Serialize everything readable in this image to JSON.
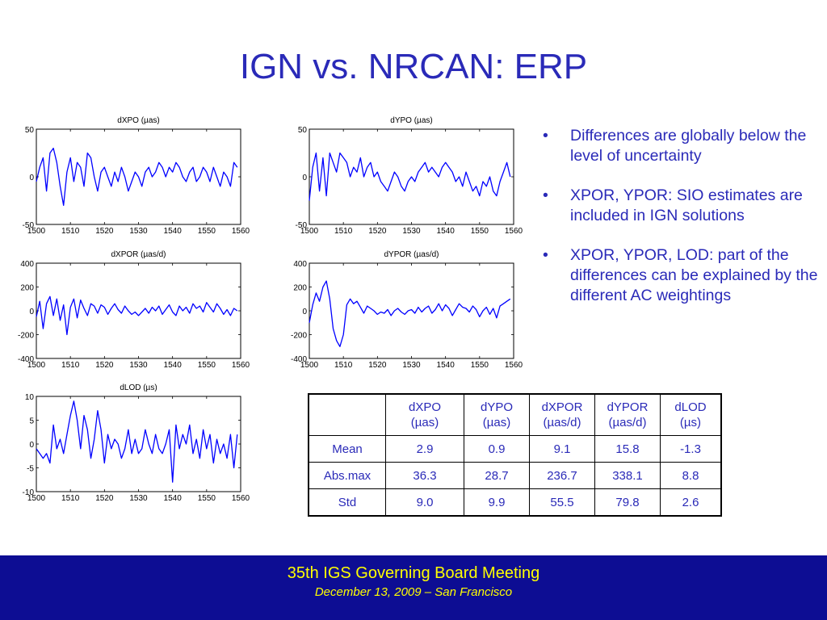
{
  "slide": {
    "title": "IGN vs. NRCAN: ERP"
  },
  "bullets": [
    "Differences are globally below the level of uncertainty",
    "XPOR, YPOR: SIO estimates are included in IGN solutions",
    "XPOR, YPOR, LOD: part of the differences can be explained by the different AC weightings"
  ],
  "bullet_symbol": "•",
  "colors": {
    "title": "#2a2ab8",
    "series": "#0000ff",
    "footer_bg": "#0d0d93",
    "footer_text": "#ffff00"
  },
  "chart_data": [
    {
      "type": "line",
      "title": "dXPO (µas)",
      "xlim": [
        1500,
        1560
      ],
      "ylim": [
        -50,
        50
      ],
      "xticks": [
        1500,
        1510,
        1520,
        1530,
        1540,
        1550,
        1560
      ],
      "yticks": [
        50,
        0,
        -50
      ],
      "series": [
        {
          "x": [
            1500,
            1501,
            1502,
            1503,
            1504,
            1505,
            1506,
            1507,
            1508,
            1509,
            1510,
            1511,
            1512,
            1513,
            1514,
            1515,
            1516,
            1517,
            1518,
            1519,
            1520,
            1521,
            1522,
            1523,
            1524,
            1525,
            1526,
            1527,
            1528,
            1529,
            1530,
            1531,
            1532,
            1533,
            1534,
            1535,
            1536,
            1537,
            1538,
            1539,
            1540,
            1541,
            1542,
            1543,
            1544,
            1545,
            1546,
            1547,
            1548,
            1549,
            1550,
            1551,
            1552,
            1553,
            1554,
            1555,
            1556,
            1557,
            1558,
            1559
          ],
          "y": [
            -5,
            10,
            20,
            -15,
            25,
            30,
            15,
            -10,
            -30,
            5,
            20,
            -5,
            15,
            10,
            -10,
            25,
            20,
            0,
            -15,
            5,
            10,
            0,
            -10,
            5,
            -5,
            10,
            0,
            -15,
            -5,
            5,
            0,
            -10,
            5,
            10,
            0,
            5,
            15,
            10,
            0,
            10,
            5,
            15,
            10,
            0,
            -5,
            5,
            10,
            -5,
            0,
            10,
            5,
            -5,
            10,
            0,
            -10,
            5,
            0,
            -10,
            15,
            10
          ]
        }
      ]
    },
    {
      "type": "line",
      "title": "dYPO (µas)",
      "xlim": [
        1500,
        1560
      ],
      "ylim": [
        -50,
        50
      ],
      "xticks": [
        1500,
        1510,
        1520,
        1530,
        1540,
        1550,
        1560
      ],
      "yticks": [
        50,
        0,
        -50
      ],
      "series": [
        {
          "x": [
            1500,
            1501,
            1502,
            1503,
            1504,
            1505,
            1506,
            1507,
            1508,
            1509,
            1510,
            1511,
            1512,
            1513,
            1514,
            1515,
            1516,
            1517,
            1518,
            1519,
            1520,
            1521,
            1522,
            1523,
            1524,
            1525,
            1526,
            1527,
            1528,
            1529,
            1530,
            1531,
            1532,
            1533,
            1534,
            1535,
            1536,
            1537,
            1538,
            1539,
            1540,
            1541,
            1542,
            1543,
            1544,
            1545,
            1546,
            1547,
            1548,
            1549,
            1550,
            1551,
            1552,
            1553,
            1554,
            1555,
            1556,
            1557,
            1558,
            1559
          ],
          "y": [
            -25,
            10,
            25,
            -15,
            20,
            -20,
            25,
            15,
            5,
            25,
            20,
            15,
            0,
            10,
            5,
            20,
            0,
            10,
            15,
            0,
            5,
            -5,
            -10,
            -15,
            -5,
            5,
            0,
            -10,
            -15,
            -5,
            0,
            -5,
            5,
            10,
            15,
            5,
            10,
            5,
            0,
            10,
            15,
            10,
            5,
            -5,
            0,
            -10,
            5,
            -5,
            -15,
            -10,
            -20,
            -5,
            -10,
            0,
            -15,
            -20,
            -5,
            5,
            15,
            0
          ]
        }
      ]
    },
    {
      "type": "line",
      "title": "dXPOR (µas/d)",
      "xlim": [
        1500,
        1560
      ],
      "ylim": [
        -400,
        400
      ],
      "xticks": [
        1500,
        1510,
        1520,
        1530,
        1540,
        1550,
        1560
      ],
      "yticks": [
        400,
        200,
        0,
        -200,
        -400
      ],
      "series": [
        {
          "x": [
            1500,
            1501,
            1502,
            1503,
            1504,
            1505,
            1506,
            1507,
            1508,
            1509,
            1510,
            1511,
            1512,
            1513,
            1514,
            1515,
            1516,
            1517,
            1518,
            1519,
            1520,
            1521,
            1522,
            1523,
            1524,
            1525,
            1526,
            1527,
            1528,
            1529,
            1530,
            1531,
            1532,
            1533,
            1534,
            1535,
            1536,
            1537,
            1538,
            1539,
            1540,
            1541,
            1542,
            1543,
            1544,
            1545,
            1546,
            1547,
            1548,
            1549,
            1550,
            1551,
            1552,
            1553,
            1554,
            1555,
            1556,
            1557,
            1558,
            1559
          ],
          "y": [
            -50,
            80,
            -150,
            60,
            120,
            -40,
            100,
            -80,
            50,
            -200,
            30,
            100,
            -60,
            90,
            20,
            -40,
            60,
            40,
            -20,
            50,
            30,
            -30,
            20,
            60,
            10,
            -20,
            40,
            0,
            -30,
            -10,
            -40,
            -10,
            20,
            -20,
            30,
            0,
            40,
            -30,
            10,
            50,
            -10,
            -40,
            40,
            0,
            30,
            -20,
            60,
            20,
            40,
            -10,
            70,
            30,
            -10,
            60,
            20,
            -30,
            10,
            -40,
            20,
            0
          ]
        }
      ]
    },
    {
      "type": "line",
      "title": "dYPOR (µas/d)",
      "xlim": [
        1500,
        1560
      ],
      "ylim": [
        -400,
        400
      ],
      "xticks": [
        1500,
        1510,
        1520,
        1530,
        1540,
        1550,
        1560
      ],
      "yticks": [
        400,
        200,
        0,
        -200,
        -400
      ],
      "series": [
        {
          "x": [
            1500,
            1501,
            1502,
            1503,
            1504,
            1505,
            1506,
            1507,
            1508,
            1509,
            1510,
            1511,
            1512,
            1513,
            1514,
            1515,
            1516,
            1517,
            1518,
            1519,
            1520,
            1521,
            1522,
            1523,
            1524,
            1525,
            1526,
            1527,
            1528,
            1529,
            1530,
            1531,
            1532,
            1533,
            1534,
            1535,
            1536,
            1537,
            1538,
            1539,
            1540,
            1541,
            1542,
            1543,
            1544,
            1545,
            1546,
            1547,
            1548,
            1549,
            1550,
            1551,
            1552,
            1553,
            1554,
            1555,
            1556,
            1557,
            1558,
            1559
          ],
          "y": [
            -100,
            50,
            150,
            80,
            200,
            250,
            100,
            -150,
            -250,
            -300,
            -200,
            50,
            100,
            60,
            80,
            30,
            -20,
            40,
            20,
            0,
            -30,
            -10,
            -20,
            10,
            -40,
            0,
            20,
            -10,
            -30,
            0,
            10,
            -20,
            30,
            -10,
            20,
            40,
            -20,
            10,
            60,
            0,
            50,
            20,
            -40,
            10,
            60,
            30,
            20,
            -10,
            40,
            10,
            -50,
            0,
            30,
            -30,
            20,
            -60,
            40,
            60,
            80,
            100
          ]
        }
      ]
    },
    {
      "type": "line",
      "title": "dLOD (µs)",
      "xlim": [
        1500,
        1560
      ],
      "ylim": [
        -10,
        10
      ],
      "xticks": [
        1500,
        1510,
        1520,
        1530,
        1540,
        1550,
        1560
      ],
      "yticks": [
        10,
        5,
        0,
        -5,
        -10
      ],
      "series": [
        {
          "x": [
            1500,
            1501,
            1502,
            1503,
            1504,
            1505,
            1506,
            1507,
            1508,
            1509,
            1510,
            1511,
            1512,
            1513,
            1514,
            1515,
            1516,
            1517,
            1518,
            1519,
            1520,
            1521,
            1522,
            1523,
            1524,
            1525,
            1526,
            1527,
            1528,
            1529,
            1530,
            1531,
            1532,
            1533,
            1534,
            1535,
            1536,
            1537,
            1538,
            1539,
            1540,
            1541,
            1542,
            1543,
            1544,
            1545,
            1546,
            1547,
            1548,
            1549,
            1550,
            1551,
            1552,
            1553,
            1554,
            1555,
            1556,
            1557,
            1558,
            1559
          ],
          "y": [
            -1,
            -2,
            -3,
            -2,
            -4,
            4,
            -1,
            1,
            -2,
            2,
            6,
            9,
            5,
            -1,
            6,
            3,
            -3,
            1,
            7,
            3,
            -4,
            2,
            -1,
            1,
            0,
            -3,
            -1,
            3,
            -2,
            1,
            -2,
            -1,
            3,
            0,
            -2,
            2,
            -1,
            -2,
            0,
            3,
            -8,
            4,
            -1,
            2,
            0,
            4,
            -2,
            1,
            -3,
            3,
            -1,
            2,
            -4,
            1,
            -2,
            0,
            -3,
            2,
            -5,
            2
          ]
        }
      ]
    }
  ],
  "table": {
    "headers": [
      {
        "line1": "",
        "line2": ""
      },
      {
        "line1": "dXPO",
        "line2": "(µas)"
      },
      {
        "line1": "dYPO",
        "line2": "(µas)"
      },
      {
        "line1": "dXPOR",
        "line2": "(µas/d)"
      },
      {
        "line1": "dYPOR",
        "line2": "(µas/d)"
      },
      {
        "line1": "dLOD",
        "line2": "(µs)"
      }
    ],
    "rows": [
      {
        "label": "Mean",
        "values": [
          "2.9",
          "0.9",
          "9.1",
          "15.8",
          "-1.3"
        ]
      },
      {
        "label": "Abs.max",
        "values": [
          "36.3",
          "28.7",
          "236.7",
          "338.1",
          "8.8"
        ]
      },
      {
        "label": "Std",
        "values": [
          "9.0",
          "9.9",
          "55.5",
          "79.8",
          "2.6"
        ]
      }
    ]
  },
  "footer": {
    "meeting": "35th IGS Governing Board Meeting",
    "date_location": "December 13, 2009 – San Francisco"
  }
}
